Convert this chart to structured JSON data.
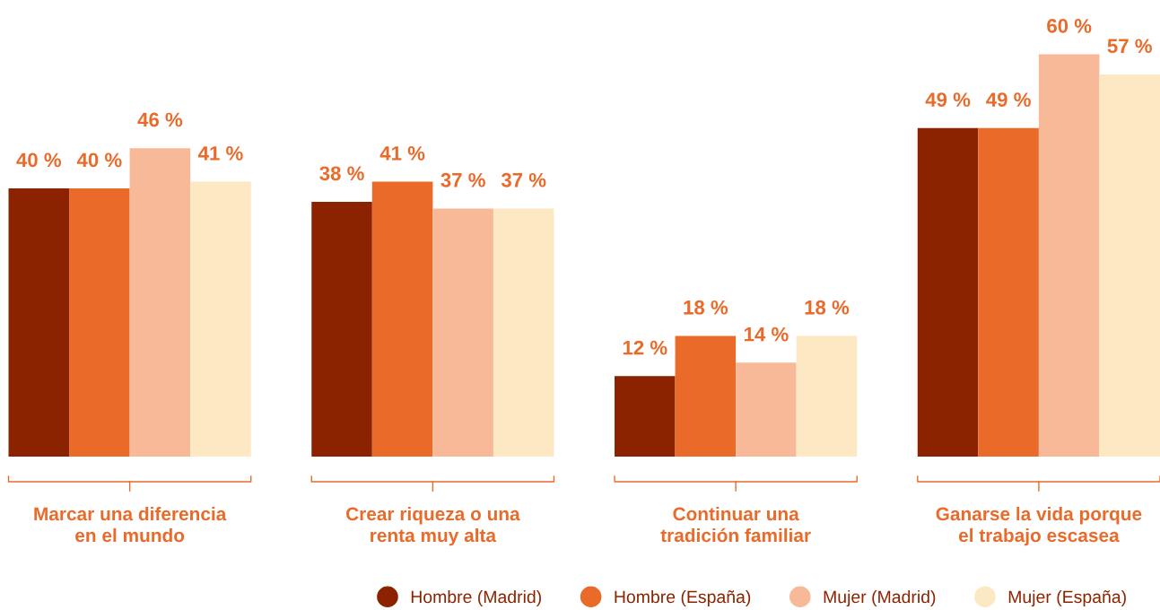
{
  "chart_data": {
    "type": "bar",
    "categories": [
      "Marcar una diferencia\nen el mundo",
      "Crear riqueza o una\nrenta muy alta",
      "Continuar una\ntradición familiar",
      "Ganarse la vida porque\nel trabajo escasea"
    ],
    "series": [
      {
        "name": "Hombre (Madrid)",
        "color": "#8b2300",
        "values": [
          40,
          38,
          12,
          49
        ],
        "value_labels": [
          "40 %",
          "38 %",
          "12 %",
          "49 %"
        ]
      },
      {
        "name": "Hombre (España)",
        "color": "#ea6a2a",
        "values": [
          40,
          41,
          18,
          49
        ],
        "value_labels": [
          "40 %",
          "41 %",
          "18 %",
          "49 %"
        ]
      },
      {
        "name": "Mujer (Madrid)",
        "color": "#f7b998",
        "values": [
          46,
          37,
          14,
          60
        ],
        "value_labels": [
          "46 %",
          "37 %",
          "14 %",
          "60 %"
        ]
      },
      {
        "name": "Mujer (España)",
        "color": "#fde8c4",
        "values": [
          41,
          37,
          18,
          57
        ],
        "value_labels": [
          "41 %",
          "37 %",
          "18 %",
          "57 %"
        ]
      }
    ],
    "legend": "bottom right"
  }
}
